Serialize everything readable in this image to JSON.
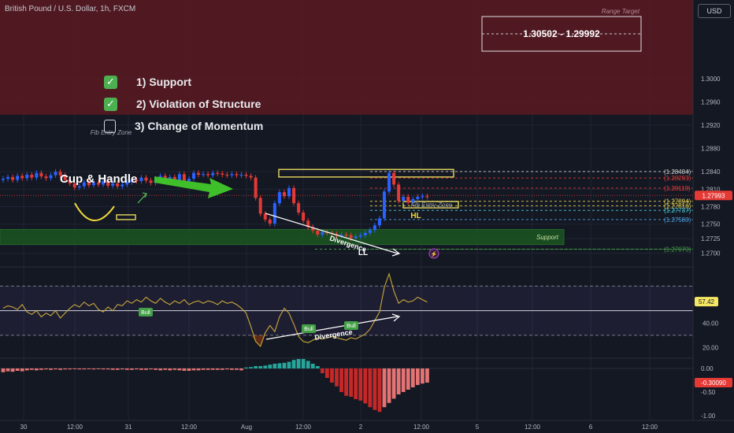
{
  "header": {
    "title": "British Pound / U.S. Dollar, 1h, FXCM",
    "currency": "USD"
  },
  "checklist": [
    {
      "label": "1) Support",
      "checked": true
    },
    {
      "label": "2) Violation of Structure",
      "checked": true
    },
    {
      "label": "3) Change of Momentum",
      "checked": false
    }
  ],
  "icons": {
    "checked": "check-icon",
    "unchecked": "empty-box-icon",
    "alert": "alert-icon"
  },
  "colors": {
    "up": "#2962ff",
    "down": "#e53935",
    "zone_support": "#1b5e20",
    "zone_target": "#5a1a22",
    "rsi": "#c8a83a",
    "box": "#f5e663"
  },
  "annotations": {
    "range_target_title": "Range Target",
    "range_target_value": "1.30502 - 1.29992",
    "cup_handle": "Cup & Handle",
    "fib_entry_left": "Fib Entry Zone",
    "fib_entry_right": "Fib Entry Zone",
    "support": "Support",
    "divergence_price": "Divergence",
    "divergence_rsi": "Divergence",
    "ll": "LL",
    "hl": "HL",
    "bull_labels": [
      "Bull",
      "Bull",
      "Bull"
    ]
  },
  "chart_data": [
    {
      "type": "line",
      "title": "",
      "y_axis": {
        "ticks": [
          1.3,
          1.296,
          1.292,
          1.288,
          1.284,
          1.281,
          1.278,
          1.275,
          1.2725,
          1.27
        ]
      },
      "x_axis": {
        "ticks": [
          "30",
          "12:00",
          "31",
          "12:00",
          "Aug",
          "12:00",
          "2",
          "12:00",
          "5",
          "12:00",
          "6",
          "12:00"
        ]
      },
      "ylim": [
        1.2678,
        1.3135
      ],
      "series": [
        {
          "values": [
            1.2828,
            1.2831,
            1.2826,
            1.2833,
            1.2829,
            1.2835,
            1.283,
            1.2838,
            1.2832,
            1.2829,
            1.2834,
            1.284,
            1.2834,
            1.2826,
            1.282,
            1.2813,
            1.2815,
            1.2822,
            1.2817,
            1.2821,
            1.2818,
            1.2824,
            1.2816,
            1.282,
            1.2815,
            1.2818,
            1.2822,
            1.2826,
            1.2824,
            1.283,
            1.2825,
            1.2821,
            1.2826,
            1.2833,
            1.2828,
            1.2831,
            1.2822,
            1.2836,
            1.2818,
            1.2828,
            1.2838,
            1.2835,
            1.2836,
            1.2834,
            1.2838,
            1.2837,
            1.2835,
            1.2834,
            1.2836,
            1.2834,
            1.2835,
            1.2833,
            1.283,
            1.2795,
            1.2768,
            1.2758,
            1.2751,
            1.2786,
            1.2805,
            1.2798,
            1.2812,
            1.2786,
            1.277,
            1.2756,
            1.2745,
            1.2739,
            1.2732,
            1.2736,
            1.2735,
            1.2733,
            1.273,
            1.2732,
            1.2731,
            1.2726,
            1.2729,
            1.2731,
            1.2735,
            1.274,
            1.2748,
            1.276,
            1.2806,
            1.2838,
            1.2818,
            1.279,
            1.2797,
            1.2787,
            1.2793,
            1.2797,
            1.2798,
            1.2797
          ]
        }
      ],
      "levels": [
        {
          "label": "1.28404",
          "value": 1.28404
        },
        {
          "label": "1.28293",
          "value": 1.28293
        },
        {
          "label": "1.28119",
          "value": 1.28119
        },
        {
          "label": "1.27993",
          "value": 1.27993
        },
        {
          "label": "1.27894",
          "value": 1.27894
        },
        {
          "label": "1.27816",
          "value": 1.27816
        },
        {
          "label": "1.27737",
          "value": 1.27737
        },
        {
          "label": "1.27580",
          "value": 1.2758
        },
        {
          "label": "1.27070",
          "value": 1.2707
        }
      ],
      "zones": [
        {
          "name": "Range Target",
          "from": 1.305,
          "to": 1.2999
        },
        {
          "name": "Support",
          "from": 1.2741,
          "to": 1.2715
        }
      ]
    },
    {
      "type": "line",
      "title": "",
      "y_axis": {
        "ticks": [
          40.0,
          20.0
        ]
      },
      "ylim": [
        12,
        85
      ],
      "bands": [
        70,
        30
      ],
      "last_value": 57.42,
      "series": [
        {
          "values": [
            52,
            54,
            53,
            51,
            55,
            49,
            47,
            50,
            45,
            48,
            46,
            50,
            44,
            48,
            52,
            55,
            53,
            57,
            54,
            56,
            51,
            49,
            53,
            50,
            55,
            54,
            58,
            56,
            59,
            57,
            61,
            58,
            56,
            60,
            57,
            55,
            58,
            56,
            59,
            55,
            57,
            58,
            56,
            58,
            57,
            55,
            58,
            56,
            57,
            55,
            52,
            48,
            37,
            25,
            21,
            32,
            38,
            33,
            45,
            52,
            48,
            39,
            29,
            25,
            24,
            26,
            28,
            27,
            28,
            29,
            28,
            27,
            26,
            28,
            27,
            29,
            31,
            35,
            42,
            49,
            69,
            80,
            66,
            56,
            59,
            57,
            58,
            61,
            59,
            57
          ]
        }
      ]
    },
    {
      "type": "bar",
      "title": "",
      "y_axis": {
        "ticks": [
          0.0,
          -0.5,
          -1.0
        ]
      },
      "ylim": [
        -1.1,
        0.2
      ],
      "last_value": -0.3009,
      "values": [
        -0.08,
        -0.06,
        -0.07,
        -0.05,
        -0.06,
        -0.04,
        -0.03,
        -0.04,
        -0.03,
        -0.02,
        -0.03,
        -0.02,
        -0.03,
        -0.02,
        -0.02,
        -0.01,
        -0.02,
        -0.02,
        -0.01,
        -0.02,
        -0.01,
        -0.02,
        -0.02,
        -0.03,
        -0.03,
        -0.02,
        -0.03,
        -0.03,
        -0.02,
        -0.03,
        -0.03,
        -0.02,
        -0.03,
        -0.04,
        -0.03,
        -0.04,
        -0.03,
        -0.04,
        -0.05,
        -0.05,
        -0.04,
        -0.04,
        -0.03,
        -0.03,
        -0.03,
        -0.03,
        -0.03,
        -0.02,
        -0.03,
        -0.03,
        -0.04,
        0.02,
        0.03,
        0.05,
        0.05,
        0.06,
        0.08,
        0.1,
        0.11,
        0.12,
        0.14,
        0.18,
        0.2,
        0.2,
        0.16,
        0.1,
        0.05,
        -0.1,
        -0.2,
        -0.3,
        -0.38,
        -0.5,
        -0.58,
        -0.6,
        -0.65,
        -0.68,
        -0.74,
        -0.82,
        -0.88,
        -0.92,
        -0.82,
        -0.73,
        -0.64,
        -0.55,
        -0.5,
        -0.45,
        -0.4,
        -0.35,
        -0.32,
        -0.3
      ]
    }
  ]
}
